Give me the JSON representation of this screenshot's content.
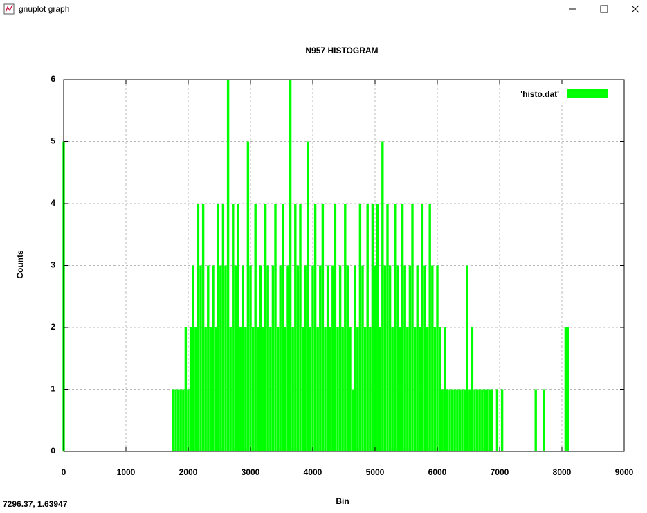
{
  "window": {
    "title": "gnuplot graph",
    "status": "7296.37, 1.63947"
  },
  "chart_data": {
    "type": "impulse",
    "title": "N957 HISTOGRAM",
    "x_label": "Bin",
    "y_label": "Counts",
    "x": [
      0,
      1760,
      1800,
      1840,
      1880,
      1920,
      1960,
      2000,
      2040,
      2080,
      2120,
      2160,
      2200,
      2240,
      2280,
      2320,
      2360,
      2400,
      2440,
      2480,
      2520,
      2560,
      2600,
      2640,
      2680,
      2720,
      2760,
      2800,
      2840,
      2880,
      2920,
      2960,
      3000,
      3040,
      3080,
      3120,
      3160,
      3200,
      3240,
      3280,
      3320,
      3360,
      3400,
      3440,
      3480,
      3520,
      3560,
      3600,
      3640,
      3680,
      3720,
      3760,
      3800,
      3840,
      3880,
      3920,
      3960,
      4000,
      4040,
      4080,
      4120,
      4160,
      4200,
      4240,
      4280,
      4320,
      4360,
      4400,
      4440,
      4480,
      4520,
      4560,
      4600,
      4640,
      4680,
      4720,
      4760,
      4800,
      4840,
      4880,
      4920,
      4960,
      5000,
      5040,
      5080,
      5120,
      5160,
      5200,
      5240,
      5280,
      5320,
      5360,
      5400,
      5440,
      5480,
      5520,
      5560,
      5600,
      5640,
      5680,
      5720,
      5760,
      5800,
      5840,
      5880,
      5920,
      5960,
      6000,
      6040,
      6080,
      6120,
      6160,
      6200,
      6240,
      6280,
      6320,
      6360,
      6400,
      6440,
      6480,
      6520,
      6560,
      6600,
      6640,
      6680,
      6720,
      6760,
      6800,
      6840,
      6880,
      6920,
      6960,
      7000,
      7040,
      7580,
      7710,
      8060,
      8080,
      8100
    ],
    "series": [
      {
        "name": "'histo.dat'",
        "color": "#00ff00",
        "values": [
          5,
          1,
          1,
          1,
          1,
          1,
          2,
          1,
          2,
          3,
          2,
          4,
          3,
          4,
          2,
          3,
          2,
          3,
          2,
          4,
          3,
          4,
          3,
          6,
          2,
          4,
          3,
          4,
          2,
          3,
          2,
          5,
          3,
          2,
          4,
          2,
          3,
          2,
          4,
          3,
          2,
          3,
          4,
          2,
          3,
          4,
          2,
          3,
          6,
          2,
          4,
          3,
          4,
          2,
          3,
          5,
          2,
          3,
          4,
          2,
          3,
          4,
          2,
          3,
          2,
          3,
          4,
          2,
          3,
          2,
          4,
          3,
          2,
          1,
          3,
          2,
          4,
          3,
          2,
          4,
          2,
          4,
          3,
          4,
          2,
          5,
          3,
          4,
          3,
          2,
          4,
          3,
          2,
          4,
          3,
          2,
          3,
          4,
          2,
          3,
          2,
          4,
          3,
          2,
          4,
          3,
          2,
          3,
          2,
          1,
          2,
          1,
          1,
          1,
          1,
          1,
          1,
          1,
          1,
          3,
          1,
          2,
          1,
          1,
          1,
          1,
          1,
          1,
          1,
          1,
          0,
          1,
          0,
          1,
          1,
          1,
          2,
          1,
          2
        ]
      }
    ],
    "xlim": [
      0,
      9000
    ],
    "xticks": [
      0,
      1000,
      2000,
      3000,
      4000,
      5000,
      6000,
      7000,
      8000,
      9000
    ],
    "ylim": [
      0,
      6
    ],
    "yticks": [
      0,
      1,
      2,
      3,
      4,
      5,
      6
    ],
    "grid": true,
    "legend": "top-right"
  }
}
